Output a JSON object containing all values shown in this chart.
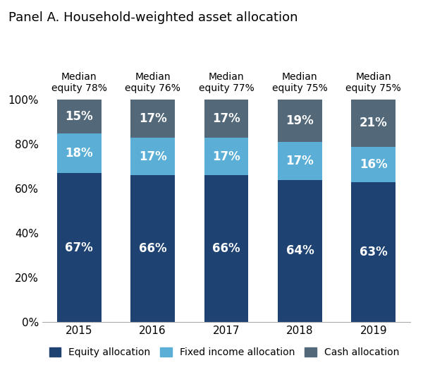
{
  "title": "Panel A. Household-weighted asset allocation",
  "years": [
    "2015",
    "2016",
    "2017",
    "2018",
    "2019"
  ],
  "median_labels": [
    "Median\nequity 78%",
    "Median\nequity 76%",
    "Median\nequity 77%",
    "Median\nequity 75%",
    "Median\nequity 75%"
  ],
  "equity": [
    67,
    66,
    66,
    64,
    63
  ],
  "fixed_income": [
    18,
    17,
    17,
    17,
    16
  ],
  "cash": [
    15,
    17,
    17,
    19,
    21
  ],
  "equity_color": "#1e4272",
  "fixed_income_color": "#5bafd6",
  "cash_color": "#536878",
  "bar_width": 0.6,
  "ylim": [
    0,
    100
  ],
  "yticks": [
    0,
    20,
    40,
    60,
    80,
    100
  ],
  "ytick_labels": [
    "0%",
    "20%",
    "40%",
    "60%",
    "80%",
    "100%"
  ],
  "legend_labels": [
    "Equity allocation",
    "Fixed income allocation",
    "Cash allocation"
  ],
  "text_color": "#ffffff",
  "title_fontsize": 13,
  "label_fontsize": 12,
  "tick_fontsize": 11,
  "median_fontsize": 10,
  "legend_fontsize": 10
}
